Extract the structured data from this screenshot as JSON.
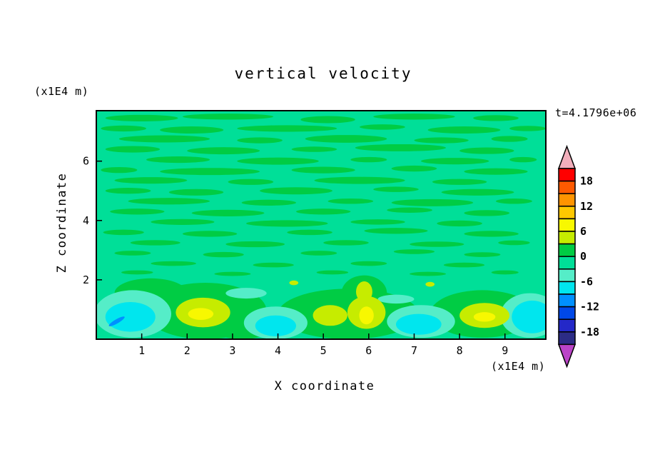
{
  "title": "vertical velocity",
  "time_label": "t=4.1796e+06",
  "axes": {
    "x_label": "X coordinate",
    "z_label": "Z coordinate",
    "x_unit": "(x1E4 m)",
    "z_unit": "(x1E4 m)",
    "x_ticks": [
      1,
      2,
      3,
      4,
      5,
      6,
      7,
      8,
      9
    ],
    "z_ticks": [
      2,
      4,
      6
    ]
  },
  "chart_data": {
    "type": "heatmap",
    "title": "vertical velocity",
    "xlabel": "X coordinate (x1E4 m)",
    "ylabel": "Z coordinate (x1E4 m)",
    "time_annotation": "t=4.1796e+06",
    "xlim": [
      0,
      9.9
    ],
    "zlim": [
      0,
      7.7
    ],
    "grid": false,
    "legend_position": "right-colorbar",
    "contour_interval": 3,
    "colorbar": {
      "top_value": 21,
      "step": 3,
      "labels": [
        "18",
        "12",
        "6",
        "0",
        "-6",
        "-12",
        "-18"
      ],
      "colors_top_to_bottom": [
        "#FF0000",
        "#FF5A00",
        "#FF9400",
        "#FFC800",
        "#F8F800",
        "#C6EC00",
        "#00CC44",
        "#00DF98",
        "#55EDC8",
        "#00E6EE",
        "#0090FF",
        "#0048E8",
        "#2428C8",
        "#2C2C86"
      ],
      "over_color": "#F2AEBB",
      "under_color": "#BB44C8"
    },
    "field_colors": {
      "background": "#00DF98",
      "green": "#00CC44",
      "pale": "#55EDC8",
      "cyan": "#00E6EE",
      "yellow_green": "#C6EC00",
      "yellow": "#F8F800",
      "blue": "#0090FF"
    },
    "features": {
      "description": "Mostly quiescent field near 0 with weak green streaks aloft; stronger updraft cells (yellow-green/yellow, +3 to +9) and downdraft patches (cyan/blue, -3 to -12) below z=2x1E4 m",
      "streaks": [
        [
          1.0,
          7.45,
          0.8,
          0.11
        ],
        [
          2.9,
          7.5,
          1.0,
          0.1
        ],
        [
          5.1,
          7.4,
          0.6,
          0.12
        ],
        [
          7.0,
          7.5,
          0.9,
          0.1
        ],
        [
          8.8,
          7.45,
          0.5,
          0.1
        ],
        [
          0.6,
          7.1,
          0.5,
          0.1
        ],
        [
          2.1,
          7.05,
          0.7,
          0.12
        ],
        [
          4.2,
          7.1,
          1.1,
          0.11
        ],
        [
          6.3,
          7.15,
          0.5,
          0.09
        ],
        [
          8.1,
          7.05,
          0.8,
          0.12
        ],
        [
          9.5,
          7.1,
          0.4,
          0.09
        ],
        [
          1.5,
          6.75,
          1.0,
          0.12
        ],
        [
          3.6,
          6.7,
          0.5,
          0.1
        ],
        [
          5.5,
          6.75,
          0.9,
          0.13
        ],
        [
          7.6,
          6.7,
          0.6,
          0.1
        ],
        [
          9.1,
          6.75,
          0.4,
          0.1
        ],
        [
          0.8,
          6.4,
          0.6,
          0.11
        ],
        [
          2.8,
          6.35,
          0.8,
          0.12
        ],
        [
          4.8,
          6.4,
          0.5,
          0.09
        ],
        [
          6.7,
          6.45,
          1.0,
          0.12
        ],
        [
          8.6,
          6.35,
          0.6,
          0.11
        ],
        [
          1.8,
          6.05,
          0.7,
          0.11
        ],
        [
          4.0,
          6.0,
          0.9,
          0.12
        ],
        [
          6.0,
          6.05,
          0.4,
          0.09
        ],
        [
          7.9,
          6.0,
          0.75,
          0.11
        ],
        [
          9.4,
          6.05,
          0.3,
          0.09
        ],
        [
          0.5,
          5.7,
          0.4,
          0.1
        ],
        [
          2.5,
          5.65,
          1.1,
          0.12
        ],
        [
          5.0,
          5.7,
          0.7,
          0.11
        ],
        [
          7.0,
          5.75,
          0.5,
          0.1
        ],
        [
          8.8,
          5.65,
          0.7,
          0.11
        ],
        [
          1.2,
          5.35,
          0.8,
          0.11
        ],
        [
          3.4,
          5.3,
          0.5,
          0.1
        ],
        [
          5.8,
          5.35,
          1.0,
          0.12
        ],
        [
          8.0,
          5.3,
          0.6,
          0.1
        ],
        [
          0.7,
          5.0,
          0.5,
          0.1
        ],
        [
          2.2,
          4.95,
          0.6,
          0.11
        ],
        [
          4.4,
          5.0,
          0.8,
          0.12
        ],
        [
          6.6,
          5.05,
          0.5,
          0.09
        ],
        [
          8.4,
          4.95,
          0.8,
          0.11
        ],
        [
          1.6,
          4.65,
          0.9,
          0.11
        ],
        [
          3.8,
          4.6,
          0.6,
          0.1
        ],
        [
          5.6,
          4.65,
          0.5,
          0.09
        ],
        [
          7.4,
          4.6,
          0.9,
          0.12
        ],
        [
          9.2,
          4.65,
          0.4,
          0.09
        ],
        [
          0.9,
          4.3,
          0.6,
          0.1
        ],
        [
          2.9,
          4.25,
          0.8,
          0.11
        ],
        [
          5.0,
          4.3,
          0.6,
          0.1
        ],
        [
          6.9,
          4.35,
          0.5,
          0.09
        ],
        [
          8.6,
          4.25,
          0.5,
          0.1
        ],
        [
          1.9,
          3.95,
          0.7,
          0.1
        ],
        [
          4.2,
          3.9,
          0.9,
          0.11
        ],
        [
          6.2,
          3.95,
          0.6,
          0.09
        ],
        [
          8.0,
          3.9,
          0.5,
          0.1
        ],
        [
          0.6,
          3.6,
          0.45,
          0.09
        ],
        [
          2.5,
          3.55,
          0.6,
          0.1
        ],
        [
          4.7,
          3.6,
          0.5,
          0.09
        ],
        [
          6.6,
          3.65,
          0.7,
          0.1
        ],
        [
          8.7,
          3.55,
          0.6,
          0.1
        ],
        [
          1.3,
          3.25,
          0.55,
          0.09
        ],
        [
          3.5,
          3.2,
          0.65,
          0.1
        ],
        [
          5.5,
          3.25,
          0.5,
          0.09
        ],
        [
          7.5,
          3.2,
          0.6,
          0.09
        ],
        [
          9.2,
          3.25,
          0.35,
          0.08
        ],
        [
          0.8,
          2.9,
          0.4,
          0.08
        ],
        [
          2.8,
          2.85,
          0.45,
          0.09
        ],
        [
          4.9,
          2.9,
          0.4,
          0.08
        ],
        [
          7.0,
          2.95,
          0.45,
          0.08
        ],
        [
          8.5,
          2.85,
          0.4,
          0.08
        ],
        [
          1.7,
          2.55,
          0.5,
          0.08
        ],
        [
          3.9,
          2.5,
          0.45,
          0.08
        ],
        [
          6.0,
          2.55,
          0.4,
          0.08
        ],
        [
          8.1,
          2.5,
          0.45,
          0.08
        ],
        [
          0.9,
          2.25,
          0.35,
          0.07
        ],
        [
          3.0,
          2.2,
          0.4,
          0.07
        ],
        [
          5.2,
          2.25,
          0.35,
          0.07
        ],
        [
          7.3,
          2.2,
          0.4,
          0.07
        ],
        [
          9.0,
          2.25,
          0.3,
          0.07
        ]
      ],
      "green_patches": [
        [
          2.4,
          0.95,
          1.35,
          0.95
        ],
        [
          1.2,
          1.55,
          0.8,
          0.5
        ],
        [
          3.2,
          0.45,
          0.7,
          0.45
        ],
        [
          5.55,
          0.85,
          1.55,
          0.85
        ],
        [
          5.9,
          1.55,
          0.5,
          0.6
        ],
        [
          8.5,
          0.85,
          1.15,
          0.8
        ]
      ],
      "pale_patches": [
        [
          0.8,
          0.85,
          0.85,
          0.8
        ],
        [
          3.95,
          0.55,
          0.7,
          0.55
        ],
        [
          7.15,
          0.6,
          0.75,
          0.55
        ],
        [
          9.55,
          0.8,
          0.65,
          0.75
        ],
        [
          3.3,
          1.55,
          0.45,
          0.18
        ],
        [
          6.6,
          1.35,
          0.4,
          0.15
        ]
      ],
      "cyan_patches": [
        [
          0.75,
          0.75,
          0.55,
          0.5
        ],
        [
          3.95,
          0.45,
          0.45,
          0.35
        ],
        [
          7.1,
          0.5,
          0.5,
          0.35
        ],
        [
          9.6,
          0.75,
          0.45,
          0.55
        ]
      ],
      "yellow_green_patches": [
        [
          2.35,
          0.9,
          0.6,
          0.5
        ],
        [
          5.15,
          0.8,
          0.38,
          0.35
        ],
        [
          5.95,
          0.9,
          0.42,
          0.55
        ],
        [
          5.9,
          1.6,
          0.18,
          0.35
        ],
        [
          8.55,
          0.8,
          0.55,
          0.42
        ],
        [
          4.35,
          1.9,
          0.1,
          0.08
        ],
        [
          7.35,
          1.85,
          0.1,
          0.08
        ]
      ],
      "yellow_patches": [
        [
          2.3,
          0.85,
          0.28,
          0.2
        ],
        [
          5.95,
          0.8,
          0.16,
          0.3
        ],
        [
          8.55,
          0.75,
          0.24,
          0.16
        ]
      ],
      "blue_dash": [
        0.45,
        0.6,
        0.2,
        0.07,
        -30
      ]
    }
  }
}
